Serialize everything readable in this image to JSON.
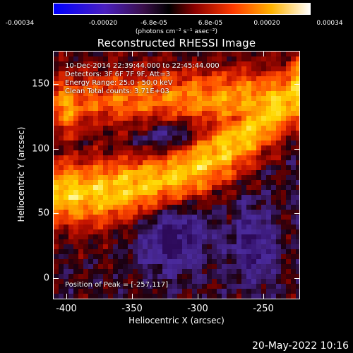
{
  "colorbar": {
    "ticks": [
      "-0.00034",
      "-0.00020",
      "-6.8e-05",
      "6.8e-05",
      "0.00020",
      "0.00034"
    ],
    "units": "(photons cm⁻² s⁻¹ asec⁻²)",
    "colors": [
      "#0000ff",
      "#5a1aa8",
      "#2a0030",
      "#000000",
      "#ff2a00",
      "#ffcc00",
      "#ffffff"
    ]
  },
  "plot": {
    "title": "Reconstructed RHESSI Image",
    "xlabel": "Heliocentric X (arcsec)",
    "ylabel": "Heliocentric Y (arcsec)",
    "xticks": [
      "-400",
      "-350",
      "-300",
      "-250"
    ],
    "yticks": [
      "150",
      "100",
      "50",
      "0"
    ]
  },
  "annotations": {
    "time_range": "10-Dec-2014 22:39:44.000 to 22:45:44.000",
    "detectors": "Detectors: 3F 6F 7F 9F, Att=3",
    "energy": "Energy Range: 25.0 - 50.0 keV",
    "clean": "Clean    Total counts: 3.71E+03",
    "peak": "Position of Peak = [-257,117]"
  },
  "footer": {
    "timestamp": "20-May-2022 10:16"
  }
}
